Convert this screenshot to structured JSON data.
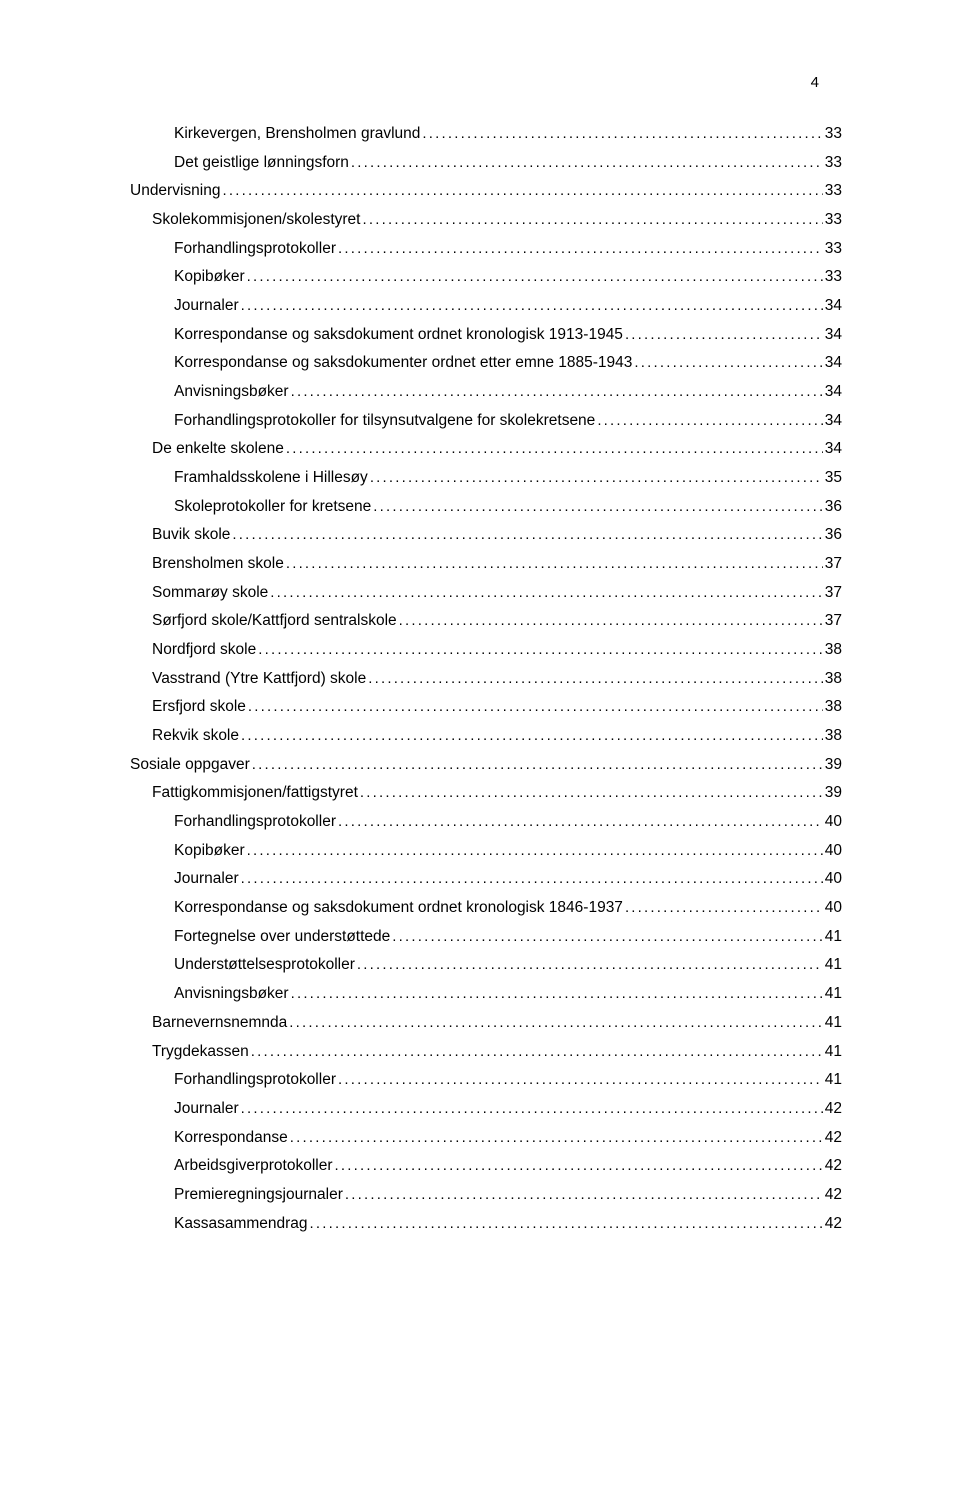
{
  "page_number": "4",
  "text_color": "#000000",
  "background_color": "#ffffff",
  "font_size_pt": 11.5,
  "toc": [
    {
      "label": "Kirkevergen, Brensholmen gravlund",
      "page": "33",
      "level": 3
    },
    {
      "label": "Det geistlige lønningsforn",
      "page": "33",
      "level": 3
    },
    {
      "label": "Undervisning",
      "page": "33",
      "level": 1
    },
    {
      "label": "Skolekommisjonen/skolestyret",
      "page": "33",
      "level": 2
    },
    {
      "label": "Forhandlingsprotokoller",
      "page": "33",
      "level": 3
    },
    {
      "label": "Kopibøker",
      "page": "33",
      "level": 3
    },
    {
      "label": "Journaler",
      "page": "34",
      "level": 3
    },
    {
      "label": "Korrespondanse og saksdokument ordnet kronologisk 1913-1945",
      "page": "34",
      "level": 3
    },
    {
      "label": "Korrespondanse og saksdokumenter ordnet etter emne 1885-1943",
      "page": "34",
      "level": 3
    },
    {
      "label": "Anvisningsbøker",
      "page": "34",
      "level": 3
    },
    {
      "label": "Forhandlingsprotokoller for tilsynsutvalgene for skolekretsene",
      "page": "34",
      "level": 3
    },
    {
      "label": "De enkelte skolene",
      "page": "34",
      "level": 2
    },
    {
      "label": "Framhaldsskolene i Hillesøy",
      "page": "35",
      "level": 3
    },
    {
      "label": "Skoleprotokoller for kretsene",
      "page": "36",
      "level": 3
    },
    {
      "label": "Buvik skole",
      "page": "36",
      "level": 2
    },
    {
      "label": "Brensholmen skole",
      "page": "37",
      "level": 2
    },
    {
      "label": "Sommarøy skole",
      "page": "37",
      "level": 2
    },
    {
      "label": "Sørfjord skole/Kattfjord sentralskole",
      "page": "37",
      "level": 2
    },
    {
      "label": "Nordfjord skole",
      "page": "38",
      "level": 2
    },
    {
      "label": "Vasstrand (Ytre Kattfjord) skole",
      "page": "38",
      "level": 2
    },
    {
      "label": "Ersfjord skole",
      "page": "38",
      "level": 2
    },
    {
      "label": "Rekvik skole",
      "page": "38",
      "level": 2
    },
    {
      "label": "Sosiale oppgaver",
      "page": "39",
      "level": 1
    },
    {
      "label": "Fattigkommisjonen/fattigstyret",
      "page": "39",
      "level": 2
    },
    {
      "label": "Forhandlingsprotokoller",
      "page": "40",
      "level": 3
    },
    {
      "label": "Kopibøker",
      "page": "40",
      "level": 3
    },
    {
      "label": "Journaler",
      "page": "40",
      "level": 3
    },
    {
      "label": "Korrespondanse og saksdokument ordnet kronologisk 1846-1937",
      "page": "40",
      "level": 3
    },
    {
      "label": "Fortegnelse over understøttede",
      "page": "41",
      "level": 3
    },
    {
      "label": "Understøttelsesprotokoller",
      "page": "41",
      "level": 3
    },
    {
      "label": "Anvisningsbøker",
      "page": "41",
      "level": 3
    },
    {
      "label": "Barnevernsnemnda",
      "page": "41",
      "level": 2
    },
    {
      "label": "Trygdekassen",
      "page": "41",
      "level": 2
    },
    {
      "label": "Forhandlingsprotokoller",
      "page": "41",
      "level": 3
    },
    {
      "label": "Journaler",
      "page": "42",
      "level": 3
    },
    {
      "label": "Korrespondanse",
      "page": "42",
      "level": 3
    },
    {
      "label": "Arbeidsgiverprotokoller",
      "page": "42",
      "level": 3
    },
    {
      "label": "Premieregningsjournaler",
      "page": "42",
      "level": 3
    },
    {
      "label": "Kassasammendrag",
      "page": "42",
      "level": 3
    }
  ]
}
